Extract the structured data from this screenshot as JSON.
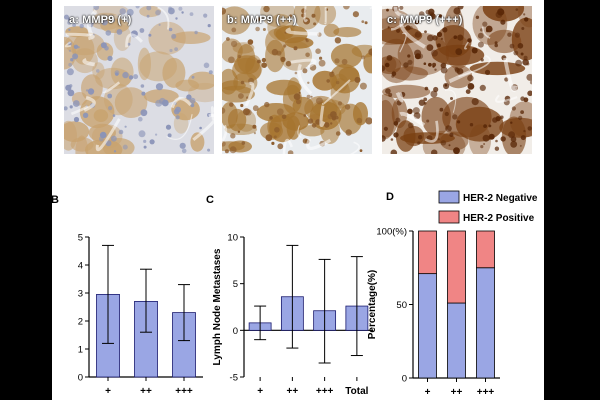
{
  "panels": [
    {
      "id": "a",
      "label": "a: MMP9 (+)",
      "stain_color": "#c8a26e",
      "cell_color": "#8b94b8",
      "bg_color": "#dcdde4"
    },
    {
      "id": "b",
      "label": "b: MMP9 (++)",
      "stain_color": "#a6742e",
      "cell_color": "#8b5a2b",
      "bg_color": "#e9ecef"
    },
    {
      "id": "c",
      "label": "c: MMP9 (+++)",
      "stain_color": "#7a3f12",
      "cell_color": "#5a2808",
      "bg_color": "#f1ede8"
    }
  ],
  "chart_data": [
    {
      "panel": "B",
      "type": "bar",
      "categories": [
        "+",
        "++",
        "+++"
      ],
      "values": [
        2.95,
        2.7,
        2.3
      ],
      "error_low": [
        1.2,
        1.6,
        1.3
      ],
      "error_high": [
        4.7,
        3.85,
        3.3
      ],
      "ylim": [
        0,
        5
      ],
      "yticks": [
        0,
        1,
        2,
        3,
        4,
        5
      ],
      "ylabel": "",
      "xlabel": "",
      "bar_color": "#9aa6e4",
      "bar_edge": "#1a1a6e",
      "title": ""
    },
    {
      "panel": "C",
      "type": "bar",
      "categories": [
        "+",
        "++",
        "+++",
        "Total"
      ],
      "values": [
        0.8,
        3.6,
        2.1,
        2.6
      ],
      "error_low": [
        -1.0,
        -1.9,
        -3.5,
        -2.7
      ],
      "error_high": [
        2.6,
        9.1,
        7.6,
        7.9
      ],
      "ylim": [
        -5,
        10
      ],
      "yticks": [
        -5,
        0,
        5,
        10
      ],
      "ylabel": "Lymph Node Metastases",
      "xlabel": "",
      "bar_color": "#9aa6e4",
      "bar_edge": "#1a1a6e",
      "title": ""
    },
    {
      "panel": "D",
      "type": "bar",
      "stacked": true,
      "categories": [
        "+",
        "++",
        "+++"
      ],
      "series": [
        {
          "name": "HER-2 Negative",
          "values": [
            71,
            51,
            75
          ],
          "color": "#9aa6e4"
        },
        {
          "name": "HER-2 Positive",
          "values": [
            29,
            49,
            25
          ],
          "color": "#f08585"
        }
      ],
      "ylim": [
        0,
        100
      ],
      "yticks": [
        "0",
        "50",
        "100(%)"
      ],
      "ylabel": "Percentage(%)",
      "xlabel": "",
      "legend_position": "top",
      "title": ""
    }
  ]
}
